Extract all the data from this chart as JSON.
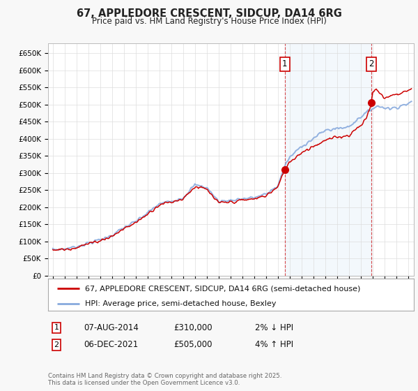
{
  "title": "67, APPLEDORE CRESCENT, SIDCUP, DA14 6RG",
  "subtitle": "Price paid vs. HM Land Registry's House Price Index (HPI)",
  "ylabel_ticks": [
    "£0",
    "£50K",
    "£100K",
    "£150K",
    "£200K",
    "£250K",
    "£300K",
    "£350K",
    "£400K",
    "£450K",
    "£500K",
    "£550K",
    "£600K",
    "£650K"
  ],
  "ytick_values": [
    0,
    50000,
    100000,
    150000,
    200000,
    250000,
    300000,
    350000,
    400000,
    450000,
    500000,
    550000,
    600000,
    650000
  ],
  "ylim": [
    0,
    680000
  ],
  "xlim_start": 1994.6,
  "xlim_end": 2025.5,
  "legend_property_label": "67, APPLEDORE CRESCENT, SIDCUP, DA14 6RG (semi-detached house)",
  "legend_hpi_label": "HPI: Average price, semi-detached house, Bexley",
  "property_color": "#cc0000",
  "hpi_color": "#88aadd",
  "transaction1_date": "07-AUG-2014",
  "transaction1_price": "£310,000",
  "transaction1_hpi": "2% ↓ HPI",
  "transaction1_x": 2014.6,
  "transaction1_y": 310000,
  "transaction2_date": "06-DEC-2021",
  "transaction2_price": "£505,000",
  "transaction2_hpi": "4% ↑ HPI",
  "transaction2_x": 2021.92,
  "transaction2_y": 505000,
  "footer": "Contains HM Land Registry data © Crown copyright and database right 2025.\nThis data is licensed under the Open Government Licence v3.0.",
  "background_color": "#f8f8f8",
  "plot_bg_color": "#ffffff",
  "grid_color": "#dddddd",
  "shade_color": "#d0e4f7",
  "box_color": "#cc0000"
}
